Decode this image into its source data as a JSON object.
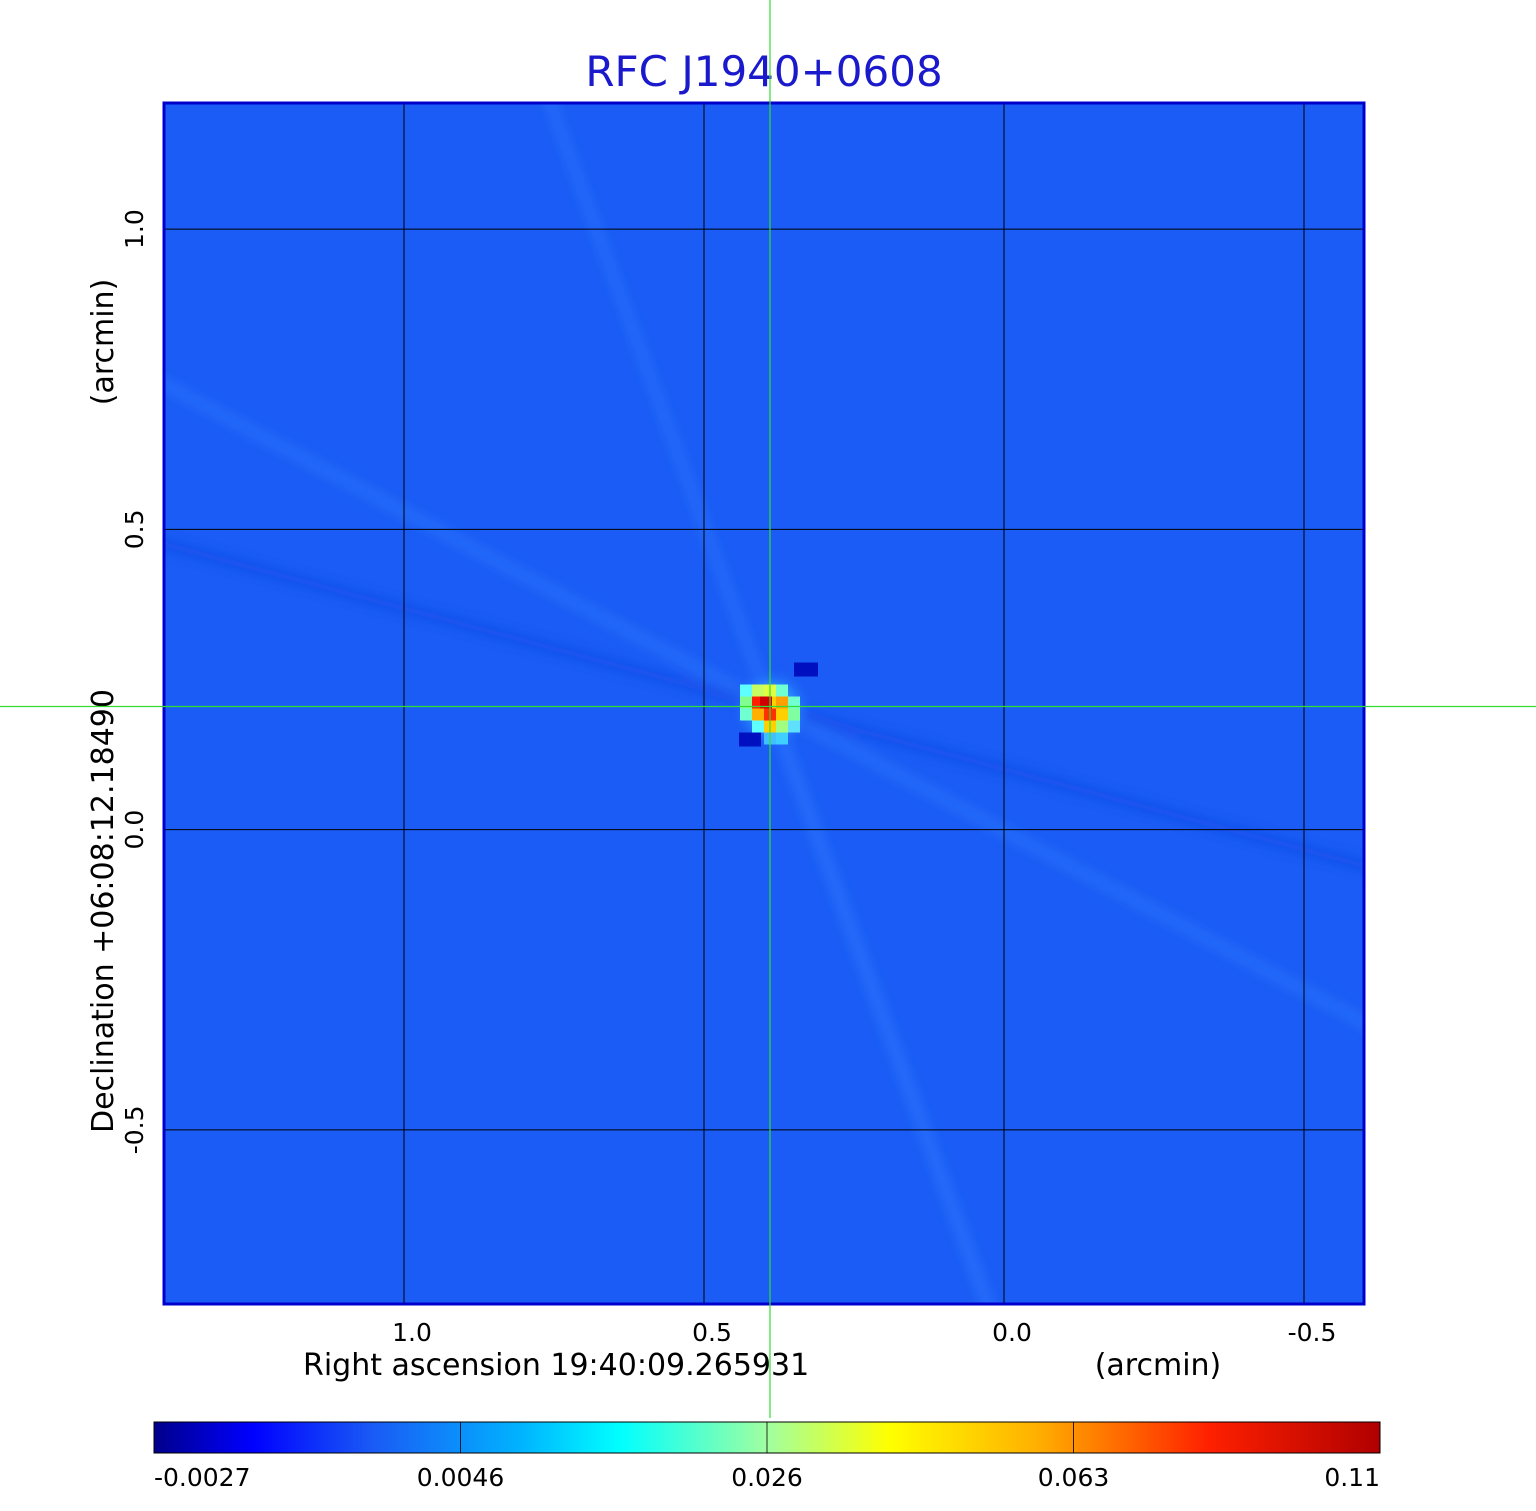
{
  "chart_data": {
    "type": "heatmap",
    "title": "RFC J1940+0608",
    "xlabel": "Right ascension  19:40:09.265931",
    "xunit": "(arcmin)",
    "ylabel": "Declination  +06:08:12.18490",
    "yunit": "(arcmin)",
    "x_ticks": [
      {
        "value": 1.0,
        "label": "1.0"
      },
      {
        "value": 0.5,
        "label": "0.5"
      },
      {
        "value": 0.0,
        "label": "0.0"
      },
      {
        "value": -0.5,
        "label": "-0.5"
      }
    ],
    "y_ticks": [
      {
        "value": 1.0,
        "label": "1.0"
      },
      {
        "value": 0.5,
        "label": "0.5"
      },
      {
        "value": 0.0,
        "label": "0.0"
      },
      {
        "value": -0.5,
        "label": "-0.5"
      }
    ],
    "xlim": [
      1.4,
      -0.6
    ],
    "ylim": [
      -0.79,
      1.21
    ],
    "x_direction": "reversed",
    "grid": true,
    "colormap": "jet",
    "crosshair": {
      "x": 0.39,
      "y": 0.205,
      "color": "#33dd33"
    },
    "peak": {
      "x": 0.39,
      "y": 0.205,
      "value": 0.11
    },
    "colorbar": {
      "placement": "bottom",
      "ticks": [
        {
          "value": -0.0027,
          "label": "-0.0027"
        },
        {
          "value": 0.0046,
          "label": "0.0046"
        },
        {
          "value": 0.026,
          "label": "0.026"
        },
        {
          "value": 0.063,
          "label": "0.063"
        },
        {
          "value": 0.11,
          "label": "0.11"
        }
      ],
      "colors": [
        "#00008b",
        "#0000ff",
        "#2060ff",
        "#00c8ff",
        "#00ffff",
        "#80ffa0",
        "#d8ff60",
        "#ffff00",
        "#ffa000",
        "#ff4000",
        "#ff0000",
        "#b00000"
      ]
    },
    "background_color": "#1a5cf5"
  }
}
